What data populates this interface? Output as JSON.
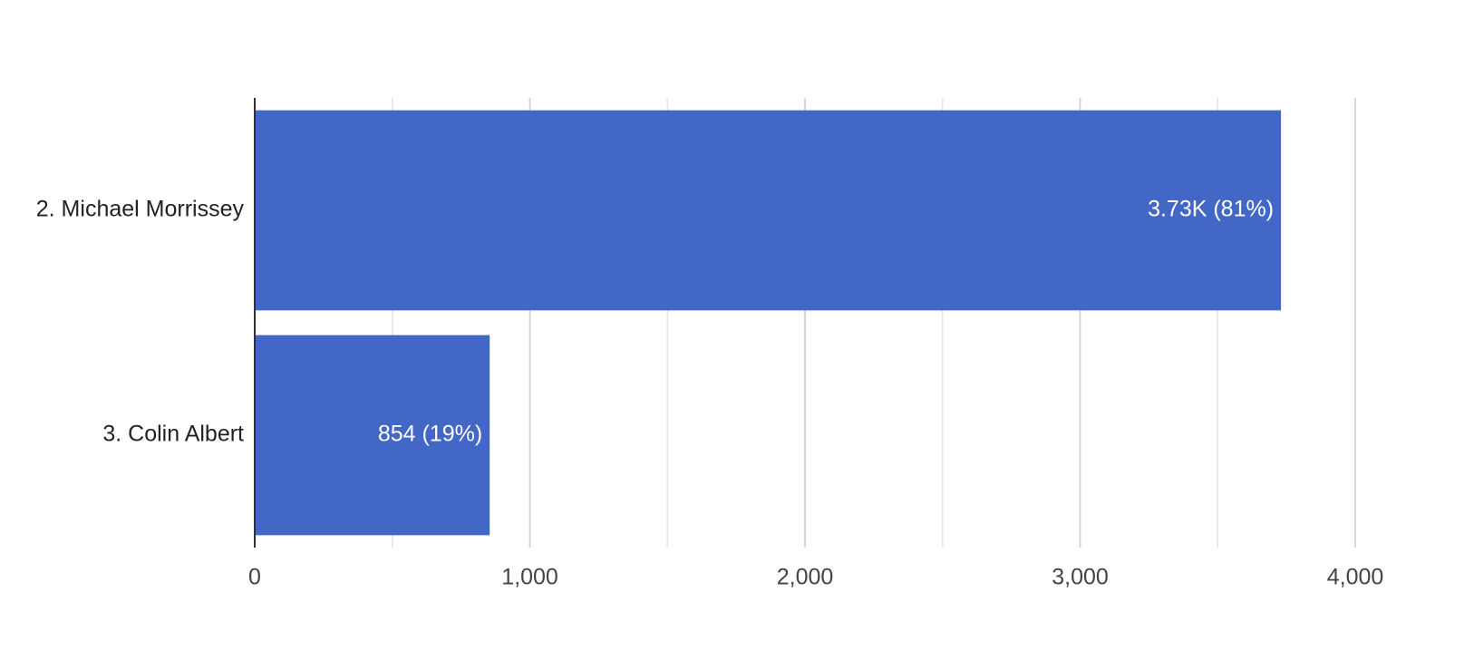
{
  "chart_data": {
    "type": "bar",
    "orientation": "horizontal",
    "categories": [
      "2. Michael Morrissey",
      "3. Colin Albert"
    ],
    "values": [
      3730,
      854
    ],
    "value_labels": [
      "3.73K (81%)",
      "854 (19%)"
    ],
    "color": "#4267c6",
    "xlim": [
      0,
      4000
    ],
    "xticks": [
      0,
      {
        "value": 1000,
        "label": "1,000"
      },
      {
        "value": 2000,
        "label": "2,000"
      },
      {
        "value": 3000,
        "label": "3,000"
      },
      {
        "value": 4000,
        "label": "4,000"
      }
    ],
    "xminorticks": [
      500,
      1500,
      2500,
      3500
    ],
    "grid": true
  }
}
